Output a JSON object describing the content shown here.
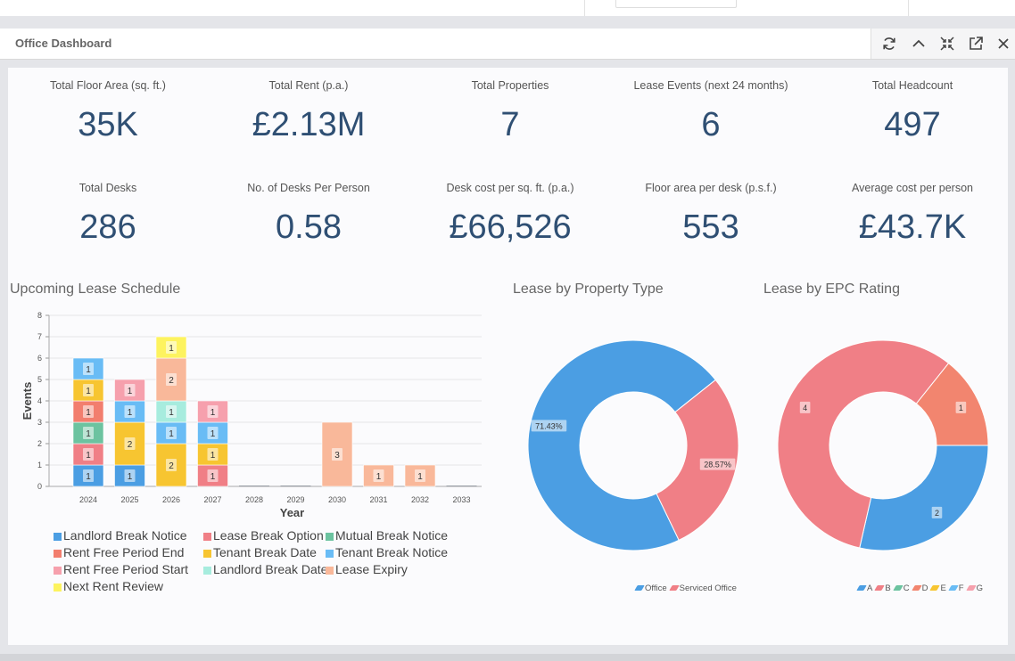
{
  "panel": {
    "title": "Office Dashboard"
  },
  "header_icons": [
    "refresh-icon",
    "collapse-icon",
    "shrink-icon",
    "external-link-icon",
    "close-icon"
  ],
  "kpis": [
    {
      "label": "Total Floor Area (sq. ft.)",
      "value": "35K"
    },
    {
      "label": "Total Rent (p.a.)",
      "value": "£2.13M"
    },
    {
      "label": "Total Properties",
      "value": "7"
    },
    {
      "label": "Lease Events (next 24 months)",
      "value": "6"
    },
    {
      "label": "Total Headcount",
      "value": "497"
    },
    {
      "label": "Total Desks",
      "value": "286"
    },
    {
      "label": "No. of Desks Per Person",
      "value": "0.58"
    },
    {
      "label": "Desk cost per sq. ft. (p.a.)",
      "value": "£66,526"
    },
    {
      "label": "Floor area per desk (p.s.f.)",
      "value": "553"
    },
    {
      "label": "Average cost per person",
      "value": "£43.7K"
    }
  ],
  "sections": {
    "lease_schedule": "Upcoming Lease Schedule",
    "property_type": "Lease by Property Type",
    "epc_rating": "Lease by EPC Rating"
  },
  "chart_data": [
    {
      "type": "bar",
      "stacked": true,
      "title": "Upcoming Lease Schedule",
      "xlabel": "Year",
      "ylabel": "Events",
      "ylim": [
        0,
        8
      ],
      "yticks": [
        0,
        1,
        2,
        3,
        4,
        5,
        6,
        7,
        8
      ],
      "grid": true,
      "legend_position": "bottom",
      "categories": [
        "2024",
        "2025",
        "2026",
        "2027",
        "2028",
        "2029",
        "2030",
        "2031",
        "2032",
        "2033"
      ],
      "series": [
        {
          "name": "Landlord Break Notice",
          "color": "#4b9ee3",
          "values": [
            1,
            1,
            0,
            0,
            0,
            0,
            0,
            0,
            0,
            0
          ]
        },
        {
          "name": "Lease Break Option",
          "color": "#f07f86",
          "values": [
            1,
            0,
            0,
            1,
            0,
            0,
            0,
            0,
            0,
            0
          ]
        },
        {
          "name": "Mutual Break Notice",
          "color": "#6cc3a0",
          "values": [
            1,
            0,
            0,
            0,
            0,
            0,
            0,
            0,
            0,
            0
          ]
        },
        {
          "name": "Rent Free Period End",
          "color": "#f27e6e",
          "values": [
            1,
            0,
            0,
            0,
            0,
            0,
            0,
            0,
            0,
            0
          ]
        },
        {
          "name": "Tenant Break Date",
          "color": "#f7c531",
          "values": [
            1,
            2,
            2,
            1,
            0,
            0,
            0,
            0,
            0,
            0
          ]
        },
        {
          "name": "Tenant Break Notice",
          "color": "#69bcf5",
          "values": [
            1,
            1,
            1,
            1,
            0,
            0,
            0,
            0,
            0,
            0
          ]
        },
        {
          "name": "Rent Free Period Start",
          "color": "#f6a0ad",
          "values": [
            0,
            1,
            0,
            1,
            0,
            0,
            0,
            0,
            0,
            0
          ]
        },
        {
          "name": "Landlord Break Date",
          "color": "#a7ecde",
          "values": [
            0,
            0,
            1,
            0,
            0,
            0,
            0,
            0,
            0,
            0
          ]
        },
        {
          "name": "Lease Expiry",
          "color": "#f9b89a",
          "values": [
            0,
            0,
            2,
            0,
            0,
            0,
            3,
            1,
            1,
            0
          ]
        },
        {
          "name": "Next Rent Review",
          "color": "#fdf35f",
          "values": [
            0,
            0,
            1,
            0,
            0,
            0,
            0,
            0,
            0,
            0
          ]
        }
      ]
    },
    {
      "type": "pie",
      "donut": true,
      "title": "Lease by Property Type",
      "legend_position": "bottom",
      "labels": [
        "Office",
        "Serviced Office"
      ],
      "values": [
        71.43,
        28.57
      ],
      "data_labels": [
        "71.43%",
        "28.57%"
      ],
      "colors": [
        "#4b9ee3",
        "#f07f86"
      ]
    },
    {
      "type": "pie",
      "donut": true,
      "title": "Lease by EPC Rating",
      "legend_position": "bottom",
      "labels": [
        "A",
        "B",
        "C",
        "D",
        "E",
        "F",
        "G"
      ],
      "values": [
        2,
        4,
        0,
        1,
        0,
        0,
        0
      ],
      "data_labels": [
        "2",
        "4",
        "",
        "1",
        "",
        "",
        ""
      ],
      "colors": [
        "#4b9ee3",
        "#f07f86",
        "#6cc3a0",
        "#f2856f",
        "#f7c531",
        "#69bcf5",
        "#f6a0ad"
      ]
    }
  ]
}
